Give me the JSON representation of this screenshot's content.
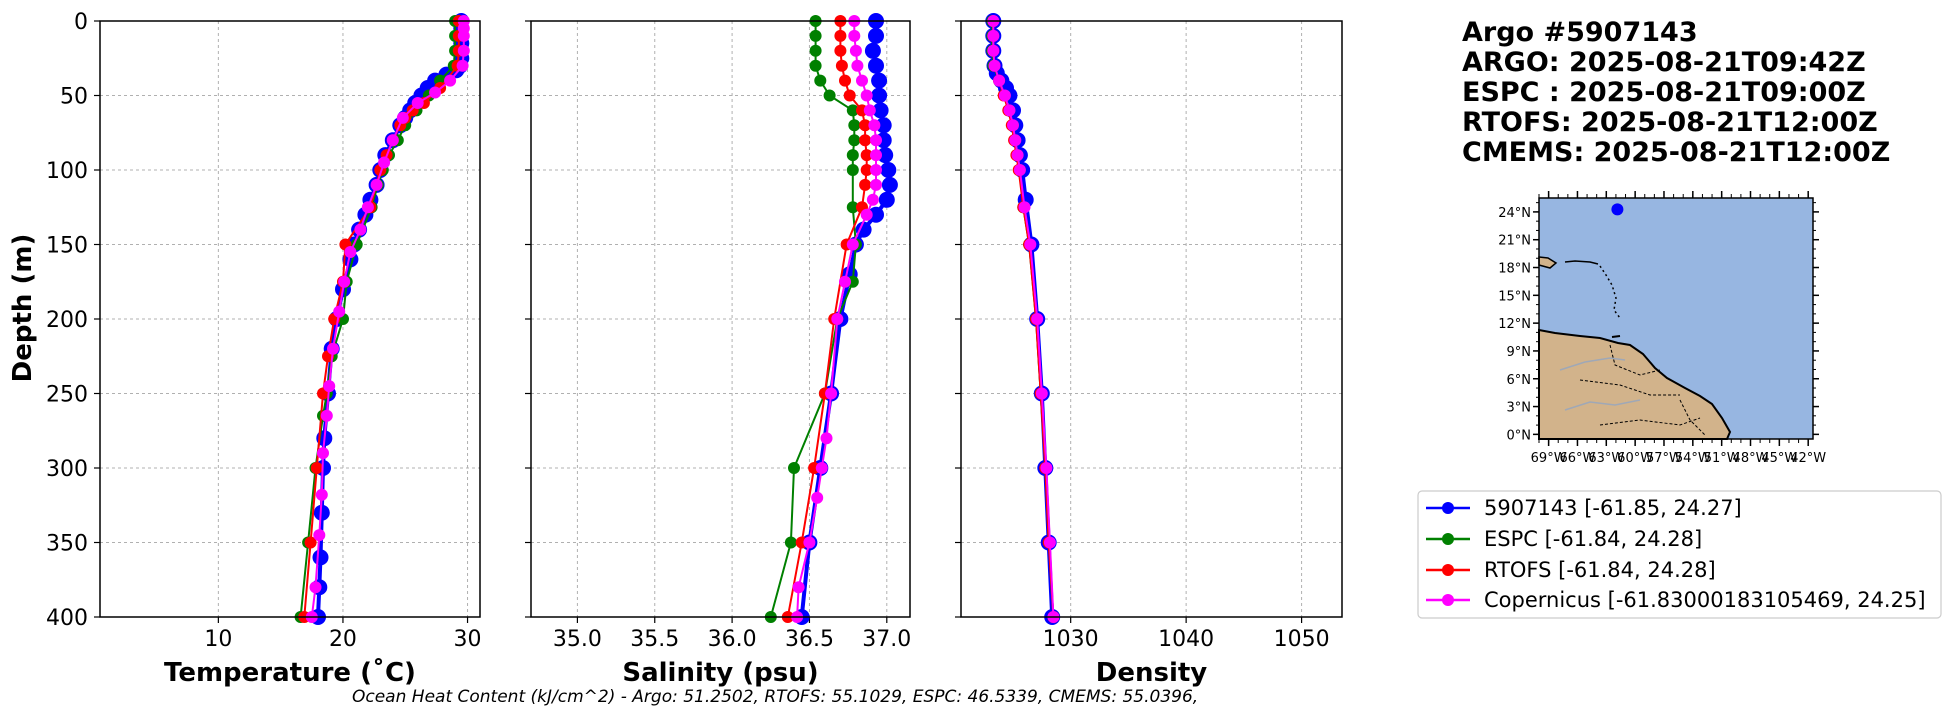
{
  "chart_data": {
    "type": "line",
    "titles": [
      "Argo #5907143",
      "ARGO: 2025-08-21T09:42Z",
      "ESPC : 2025-08-21T09:00Z",
      "RTOFS: 2025-08-21T12:00Z",
      "CMEMS: 2025-08-21T12:00Z"
    ],
    "footer": "Ocean Heat Content (kJ/cm^2) - Argo: 51.2502,  RTOFS: 55.1029,  ESPC: 46.5339,  CMEMS: 55.0396,",
    "ylabel": "Depth (m)",
    "ylim": [
      400,
      0
    ],
    "yticks": [
      "0",
      "50",
      "100",
      "150",
      "200",
      "250",
      "300",
      "350",
      "400"
    ],
    "grid": true,
    "panels": [
      {
        "xlabel": "Temperature (˚C)",
        "xlim": [
          0.5,
          31
        ],
        "xticks": [
          "10",
          "20",
          "30"
        ],
        "series": [
          {
            "name": "5907143",
            "color": "#0000ff",
            "depth": [
              0,
              5,
              10,
              15,
              20,
              25,
              30,
              33,
              36,
              40,
              45,
              50,
              55,
              60,
              65,
              70,
              80,
              90,
              100,
              110,
              120,
              130,
              140,
              150,
              160,
              180,
              200,
              220,
              250,
              280,
              300,
              330,
              360,
              380,
              400
            ],
            "values": [
              29.5,
              29.5,
              29.5,
              29.5,
              29.5,
              29.5,
              29.4,
              29.1,
              28.3,
              27.4,
              26.8,
              26.3,
              25.8,
              25.4,
              25.0,
              24.6,
              24.0,
              23.4,
              23.0,
              22.7,
              22.2,
              21.8,
              21.3,
              20.9,
              20.6,
              20.0,
              19.5,
              19.1,
              18.8,
              18.5,
              18.4,
              18.3,
              18.2,
              18.1,
              18.0
            ]
          },
          {
            "name": "ESPC",
            "color": "#008000",
            "depth": [
              0,
              10,
              20,
              30,
              40,
              50,
              60,
              70,
              80,
              90,
              100,
              110,
              125,
              150,
              175,
              200,
              225,
              250,
              265,
              300,
              350,
              400
            ],
            "values": [
              29.0,
              29.0,
              29.0,
              28.9,
              27.8,
              26.9,
              25.9,
              25.0,
              24.4,
              23.7,
              23.2,
              22.8,
              22.3,
              21.1,
              20.3,
              20.0,
              19.1,
              18.7,
              18.4,
              17.8,
              17.2,
              16.6
            ]
          },
          {
            "name": "RTOFS",
            "color": "#ff0000",
            "depth": [
              0,
              10,
              20,
              30,
              45,
              55,
              60,
              65,
              70,
              80,
              90,
              100,
              125,
              150,
              175,
              200,
              225,
              250,
              300,
              350,
              400
            ],
            "values": [
              29.3,
              29.3,
              29.3,
              29.2,
              27.8,
              26.5,
              25.6,
              25.0,
              24.6,
              24.0,
              23.5,
              23.0,
              22.2,
              20.2,
              20.0,
              19.3,
              18.8,
              18.4,
              17.9,
              17.4,
              16.9
            ]
          },
          {
            "name": "Copernicus [-61.83000183105469, 24.25]",
            "color": "#ff00ff",
            "depth": [
              0,
              5,
              10,
              20,
              30,
              40,
              48,
              55,
              65,
              80,
              95,
              110,
              125,
              140,
              155,
              175,
              195,
              220,
              245,
              265,
              290,
              318,
              345,
              380,
              400
            ],
            "values": [
              29.7,
              29.7,
              29.7,
              29.7,
              29.6,
              28.6,
              27.4,
              26.0,
              24.8,
              24.0,
              23.3,
              22.7,
              22.0,
              21.4,
              20.6,
              20.1,
              19.7,
              19.2,
              18.9,
              18.7,
              18.4,
              18.3,
              18.1,
              17.8,
              17.5
            ]
          }
        ]
      },
      {
        "xlabel": "Salinity (psu)",
        "xlim": [
          34.7,
          37.15
        ],
        "xticks": [
          "35.0",
          "35.5",
          "36.0",
          "36.5",
          "37.0"
        ],
        "series": [
          {
            "name": "5907143",
            "color": "#0000ff",
            "depth": [
              0,
              10,
              20,
              30,
              40,
              50,
              60,
              70,
              80,
              90,
              100,
              110,
              120,
              130,
              140,
              150,
              170,
              200,
              250,
              300,
              350,
              400
            ],
            "values": [
              36.93,
              36.93,
              36.91,
              36.93,
              36.95,
              36.95,
              36.96,
              36.98,
              36.98,
              36.99,
              37.01,
              37.02,
              37.0,
              36.93,
              36.85,
              36.8,
              36.76,
              36.7,
              36.64,
              36.57,
              36.5,
              36.45
            ]
          },
          {
            "name": "ESPC",
            "color": "#008000",
            "depth": [
              0,
              10,
              20,
              30,
              40,
              50,
              60,
              70,
              80,
              90,
              100,
              125,
              150,
              175,
              200,
              250,
              300,
              350,
              400
            ],
            "values": [
              36.54,
              36.54,
              36.54,
              36.54,
              36.57,
              36.63,
              36.78,
              36.79,
              36.79,
              36.78,
              36.78,
              36.78,
              36.8,
              36.78,
              36.68,
              36.6,
              36.4,
              36.38,
              36.25
            ]
          },
          {
            "name": "RTOFS",
            "color": "#ff0000",
            "depth": [
              0,
              10,
              20,
              30,
              40,
              50,
              60,
              70,
              80,
              90,
              100,
              110,
              125,
              150,
              200,
              250,
              300,
              350,
              400
            ],
            "values": [
              36.7,
              36.7,
              36.7,
              36.71,
              36.73,
              36.76,
              36.84,
              36.86,
              36.86,
              36.87,
              36.87,
              36.86,
              36.84,
              36.74,
              36.66,
              36.6,
              36.53,
              36.45,
              36.36
            ]
          },
          {
            "name": "Copernicus [-61.83000183105469, 24.25]",
            "color": "#ff00ff",
            "depth": [
              0,
              10,
              20,
              30,
              40,
              50,
              60,
              70,
              80,
              90,
              100,
              110,
              120,
              130,
              150,
              175,
              200,
              250,
              280,
              300,
              320,
              350,
              380,
              400
            ],
            "values": [
              36.79,
              36.79,
              36.8,
              36.81,
              36.84,
              36.87,
              36.89,
              36.92,
              36.93,
              36.93,
              36.93,
              36.93,
              36.91,
              36.87,
              36.78,
              36.73,
              36.68,
              36.64,
              36.61,
              36.58,
              36.55,
              36.5,
              36.43,
              36.42
            ]
          }
        ]
      },
      {
        "xlabel": "Density",
        "xlim": [
          1020.5,
          1053.5
        ],
        "xticks": [
          "1030",
          "1040",
          "1050"
        ],
        "series": [
          {
            "name": "5907143",
            "color": "#0000ff",
            "depth": [
              0,
              10,
              20,
              30,
              35,
              40,
              45,
              50,
              60,
              70,
              80,
              90,
              100,
              120,
              150,
              200,
              250,
              300,
              350,
              400
            ],
            "values": [
              1023.3,
              1023.3,
              1023.3,
              1023.4,
              1023.6,
              1024.0,
              1024.4,
              1024.7,
              1025.0,
              1025.2,
              1025.4,
              1025.6,
              1025.8,
              1026.1,
              1026.6,
              1027.1,
              1027.5,
              1027.8,
              1028.1,
              1028.4
            ]
          },
          {
            "name": "ESPC",
            "color": "#008000",
            "depth": [
              0,
              10,
              20,
              30,
              40,
              50,
              60,
              70,
              80,
              90,
              100,
              125,
              150,
              200,
              250,
              300,
              350,
              400
            ],
            "values": [
              1023.2,
              1023.2,
              1023.2,
              1023.3,
              1023.8,
              1024.3,
              1024.7,
              1025.0,
              1025.2,
              1025.4,
              1025.6,
              1025.9,
              1026.4,
              1027.0,
              1027.4,
              1027.8,
              1028.1,
              1028.5
            ]
          },
          {
            "name": "RTOFS",
            "color": "#ff0000",
            "depth": [
              0,
              10,
              20,
              30,
              40,
              50,
              60,
              70,
              80,
              90,
              100,
              125,
              150,
              200,
              250,
              300,
              350,
              400
            ],
            "values": [
              1023.3,
              1023.3,
              1023.3,
              1023.4,
              1023.8,
              1024.2,
              1024.6,
              1024.9,
              1025.1,
              1025.3,
              1025.5,
              1025.9,
              1026.4,
              1027.0,
              1027.4,
              1027.8,
              1028.1,
              1028.5
            ]
          },
          {
            "name": "Copernicus [-61.83000183105469, 24.25]",
            "color": "#ff00ff",
            "depth": [
              0,
              10,
              20,
              30,
              40,
              50,
              60,
              70,
              80,
              90,
              100,
              125,
              150,
              200,
              250,
              300,
              350,
              400
            ],
            "values": [
              1023.3,
              1023.3,
              1023.3,
              1023.4,
              1023.8,
              1024.3,
              1024.7,
              1025.0,
              1025.2,
              1025.4,
              1025.6,
              1026.0,
              1026.5,
              1027.1,
              1027.5,
              1027.9,
              1028.2,
              1028.5
            ]
          }
        ]
      }
    ],
    "legend": {
      "placement": "right",
      "entries": [
        {
          "label": "5907143 [-61.85, 24.27]",
          "color": "#0000ff"
        },
        {
          "label": "ESPC [-61.84, 24.28]",
          "color": "#008000"
        },
        {
          "label": "RTOFS [-61.84, 24.28]",
          "color": "#ff0000"
        },
        {
          "label": "Copernicus [-61.83000183105469, 24.25]",
          "color": "#ff00ff"
        }
      ]
    },
    "map": {
      "lat_ticks": [
        "24°N",
        "21°N",
        "18°N",
        "15°N",
        "12°N",
        "9°N",
        "6°N",
        "3°N",
        "0°N"
      ],
      "lon_ticks": [
        "69°W",
        "66°W",
        "63°W",
        "60°W",
        "57°W",
        "54°W",
        "51°W",
        "48°W",
        "45°W",
        "42°W"
      ],
      "lon_range": [
        -70,
        -41.5
      ],
      "lat_range": [
        -0.5,
        25.5
      ],
      "float_position": {
        "lon": -61.85,
        "lat": 24.27
      },
      "ocean_color": "#97b6e1",
      "land_color": "#d2b38b"
    }
  }
}
